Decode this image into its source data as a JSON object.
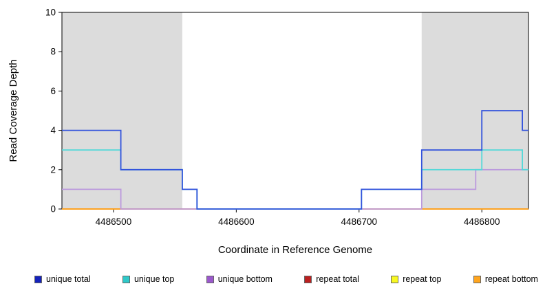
{
  "page": {
    "background": "#ffffff"
  },
  "chart_data": {
    "type": "line",
    "step": true,
    "title": "",
    "xlabel": "Coordinate in Reference Genome",
    "ylabel": "Read Coverage Depth",
    "xlim": [
      4486458,
      4486838
    ],
    "ylim": [
      0,
      10
    ],
    "grid": false,
    "legend_position": "bottom",
    "x_ticks": [
      {
        "value": 4486500,
        "label": "4486500"
      },
      {
        "value": 4486600,
        "label": "4486600"
      },
      {
        "value": 4486700,
        "label": "4486700"
      },
      {
        "value": 4486800,
        "label": "4486800"
      }
    ],
    "y_ticks": [
      {
        "value": 0,
        "label": "0"
      },
      {
        "value": 2,
        "label": "2"
      },
      {
        "value": 4,
        "label": "4"
      },
      {
        "value": 6,
        "label": "6"
      },
      {
        "value": 8,
        "label": "8"
      },
      {
        "value": 10,
        "label": "10"
      }
    ],
    "shaded_regions": [
      {
        "x0": 4486458,
        "x1": 4486556,
        "color": "#dcdcdc"
      },
      {
        "x0": 4486751,
        "x1": 4486838,
        "color": "#dcdcdc"
      }
    ],
    "series": [
      {
        "name": "repeat total",
        "color": "#cc2222",
        "values": [
          [
            4486458,
            0
          ]
        ]
      },
      {
        "name": "repeat top",
        "color": "#f5e622",
        "values": [
          [
            4486458,
            0
          ]
        ]
      },
      {
        "name": "repeat bottom",
        "color": "#ff9d1e",
        "values": [
          [
            4486458,
            0
          ]
        ]
      },
      {
        "name": "unique bottom",
        "color": "#bb99dd",
        "values": [
          [
            4486458,
            1
          ],
          [
            4486506,
            0
          ],
          [
            4486751,
            1
          ],
          [
            4486795,
            2
          ]
        ]
      },
      {
        "name": "unique top",
        "color": "#55d8d8",
        "values": [
          [
            4486458,
            3
          ],
          [
            4486506,
            2
          ],
          [
            4486556,
            1
          ],
          [
            4486568,
            0
          ],
          [
            4486702,
            1
          ],
          [
            4486751,
            2
          ],
          [
            4486800,
            3
          ],
          [
            4486833,
            2
          ]
        ]
      },
      {
        "name": "unique total",
        "color": "#3353dc",
        "values": [
          [
            4486458,
            4
          ],
          [
            4486506,
            2
          ],
          [
            4486556,
            1
          ],
          [
            4486568,
            0
          ],
          [
            4486702,
            1
          ],
          [
            4486751,
            3
          ],
          [
            4486800,
            5
          ],
          [
            4486833,
            4
          ]
        ]
      }
    ],
    "legend": [
      {
        "label": "unique total",
        "color": "#1522bb"
      },
      {
        "label": "unique top",
        "color": "#2fc9c9"
      },
      {
        "label": "unique bottom",
        "color": "#9b59cc"
      },
      {
        "label": "repeat total",
        "color": "#bb2020"
      },
      {
        "label": "repeat top",
        "color": "#f8f821"
      },
      {
        "label": "repeat bottom",
        "color": "#ffa51e"
      }
    ]
  }
}
